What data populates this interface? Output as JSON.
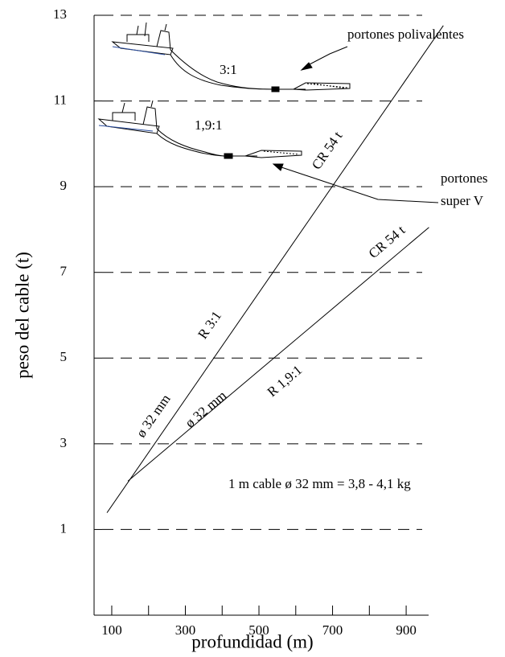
{
  "chart_data": {
    "type": "line",
    "xlabel": "profundidad (m)",
    "ylabel": "peso del cable (t)",
    "xlim": [
      52,
      961
    ],
    "ylim": [
      -1,
      13
    ],
    "xticks": [
      100,
      300,
      500,
      700,
      900
    ],
    "xminorticks": [
      200,
      400,
      600,
      800
    ],
    "yticks": [
      1,
      3,
      5,
      7,
      9,
      11,
      13
    ],
    "grid": true,
    "series": [
      {
        "name": "R 3:1",
        "color": "#000000",
        "x": [
          87,
          1001
        ],
        "values": [
          1.39,
          12.76
        ]
      },
      {
        "name": "R 1,9:1",
        "color": "#000000",
        "x": [
          144,
          962
        ],
        "values": [
          2.13,
          8.05
        ]
      }
    ],
    "annotations": [
      "portones polivalentes",
      "3:1",
      "1,9:1",
      "portones",
      "super V",
      "CR 54 t",
      "CR 54 t",
      "ø 32 mm",
      "ø 32 mm",
      "1 m cable  ø 32 mm = 3,8 - 4,1  kg"
    ]
  }
}
